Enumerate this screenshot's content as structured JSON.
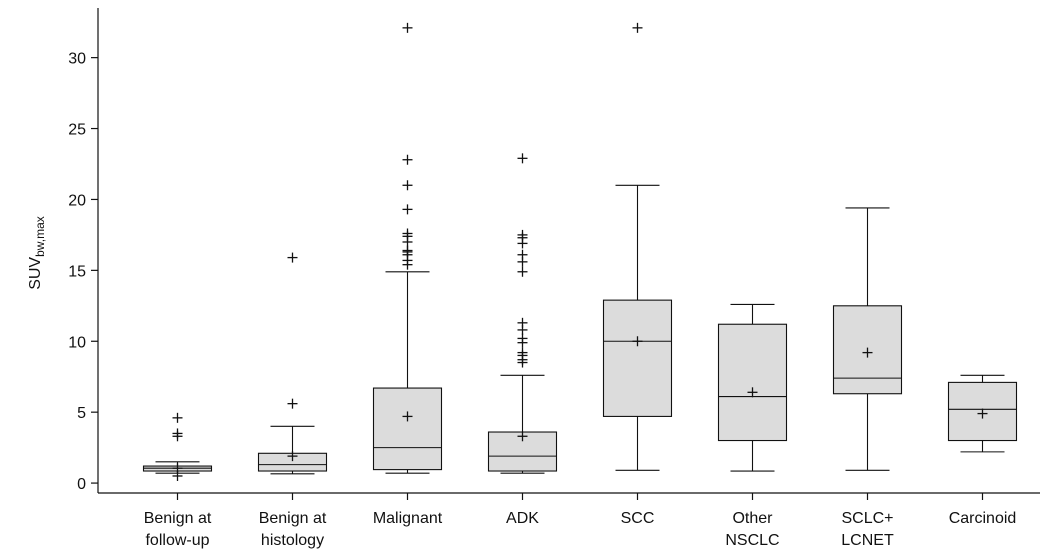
{
  "chart_data": {
    "type": "box",
    "ylabel_main": "SUV",
    "ylabel_sub": "bw,max",
    "ylim": [
      -0.7,
      33.5
    ],
    "yticks": [
      0,
      5,
      10,
      15,
      20,
      25,
      30
    ],
    "grid": false,
    "legend": "none",
    "box_fill": "#dcdcdc",
    "line_color": "#111111",
    "categories": [
      {
        "label_lines": [
          "Benign at",
          "follow-up"
        ],
        "whisker_low": 0.7,
        "q1": 0.85,
        "median": 1.05,
        "q3": 1.2,
        "whisker_high": 1.5,
        "mean": 1.05,
        "outliers": [
          0.5,
          3.3,
          3.5,
          4.6
        ]
      },
      {
        "label_lines": [
          "Benign at",
          "histology"
        ],
        "whisker_low": 0.65,
        "q1": 0.85,
        "median": 1.3,
        "q3": 2.1,
        "whisker_high": 4.0,
        "mean": 1.9,
        "outliers": [
          5.6,
          15.9
        ]
      },
      {
        "label_lines": [
          "Malignant"
        ],
        "whisker_low": 0.7,
        "q1": 0.95,
        "median": 2.5,
        "q3": 6.7,
        "whisker_high": 14.9,
        "mean": 4.7,
        "outliers": [
          15.4,
          15.7,
          16.1,
          16.3,
          16.4,
          17.0,
          17.4,
          17.6,
          19.3,
          21.0,
          22.8,
          32.1
        ]
      },
      {
        "label_lines": [
          "ADK"
        ],
        "whisker_low": 0.7,
        "q1": 0.85,
        "median": 1.9,
        "q3": 3.6,
        "whisker_high": 7.6,
        "mean": 3.3,
        "outliers": [
          8.5,
          8.7,
          9.0,
          9.2,
          9.9,
          10.2,
          10.8,
          11.3,
          14.9,
          15.6,
          16.1,
          16.9,
          17.3,
          17.5,
          22.9
        ]
      },
      {
        "label_lines": [
          "SCC"
        ],
        "whisker_low": 0.9,
        "q1": 4.7,
        "median": 10.0,
        "q3": 12.9,
        "whisker_high": 21.0,
        "mean": 10.0,
        "outliers": [
          32.1
        ]
      },
      {
        "label_lines": [
          "Other",
          "NSCLC"
        ],
        "whisker_low": 0.85,
        "q1": 3.0,
        "median": 6.1,
        "q3": 11.2,
        "whisker_high": 12.6,
        "mean": 6.4,
        "outliers": []
      },
      {
        "label_lines": [
          "SCLC+",
          "LCNET"
        ],
        "whisker_low": 0.9,
        "q1": 6.3,
        "median": 7.4,
        "q3": 12.5,
        "whisker_high": 19.4,
        "mean": 9.2,
        "outliers": []
      },
      {
        "label_lines": [
          "Carcinoid"
        ],
        "whisker_low": 2.2,
        "q1": 3.0,
        "median": 5.2,
        "q3": 7.1,
        "whisker_high": 7.6,
        "mean": 4.9,
        "outliers": []
      }
    ]
  }
}
